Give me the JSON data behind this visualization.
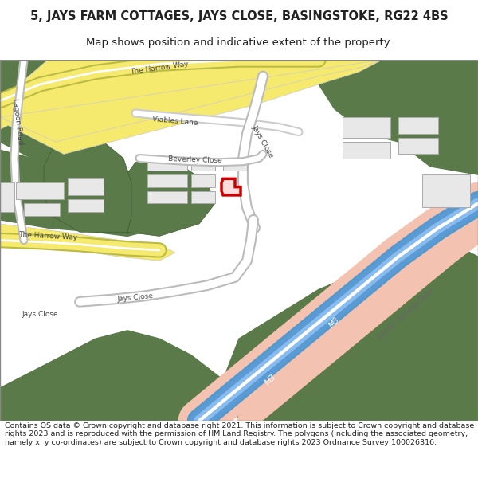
{
  "title_line1": "5, JAYS FARM COTTAGES, JAYS CLOSE, BASINGSTOKE, RG22 4BS",
  "title_line2": "Map shows position and indicative extent of the property.",
  "footer_text": "Contains OS data © Crown copyright and database right 2021. This information is subject to Crown copyright and database rights 2023 and is reproduced with the permission of HM Land Registry. The polygons (including the associated geometry, namely x, y co-ordinates) are subject to Crown copyright and database rights 2023 Ordnance Survey 100026316.",
  "bg_color": "#ffffff",
  "map_bg": "#f2ede4",
  "road_yellow": "#f5e96e",
  "road_white": "#ffffff",
  "motorway_blue": "#5b9bd5",
  "motorway_pink": "#f4c2b0",
  "green_dark": "#5a7a4a",
  "green_light": "#c8d8b0",
  "plot_red": "#cc0000",
  "road_outline": "#cccccc",
  "building_fill": "#e8e8e8",
  "building_stroke": "#aaaaaa",
  "text_color": "#222222",
  "road_text": "#444444"
}
